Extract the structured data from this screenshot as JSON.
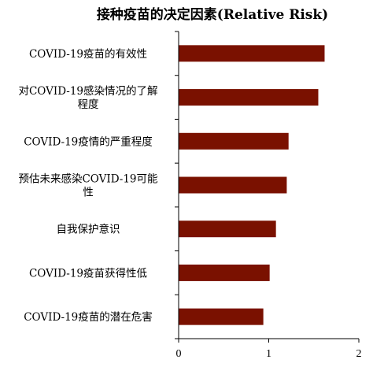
{
  "chart_data": {
    "type": "bar",
    "orientation": "horizontal",
    "title": "接种疫苗的决定因素(Relative Risk)",
    "categories": [
      [
        "COVID-19疫苗的有效性"
      ],
      [
        "对COVID-19感染情况的了解",
        "程度"
      ],
      [
        "COVID-19疫情的严重程度"
      ],
      [
        "预估未来感染COVID-19可能",
        "性"
      ],
      [
        "自我保护意识"
      ],
      [
        "COVID-19疫苗获得性低"
      ],
      [
        "COVID-19疫苗的潜在危害"
      ]
    ],
    "values": [
      1.62,
      1.55,
      1.22,
      1.2,
      1.08,
      1.01,
      0.94
    ],
    "xlim": [
      0,
      2
    ],
    "xticks": [
      0,
      1,
      2
    ],
    "xtick_labels": [
      "0",
      "1",
      "2"
    ],
    "xlabel": "",
    "ylabel": "",
    "grid": false,
    "legend": "none",
    "bar_color": "#7a1100"
  }
}
